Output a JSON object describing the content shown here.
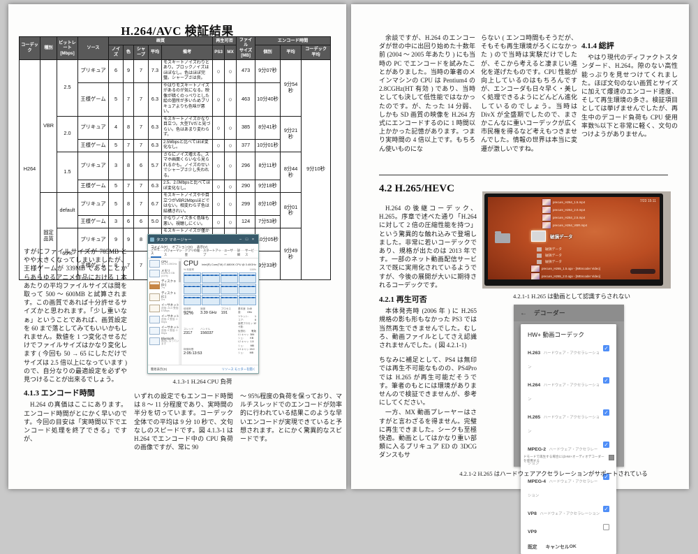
{
  "left_page": {
    "title": "H.264/AVC 検証結果",
    "table": {
      "header_rows": [
        [
          {
            "t": "コーデック",
            "rs": 2
          },
          {
            "t": "種別",
            "rs": 2
          },
          {
            "t": "ビットレート\n[Mbps]",
            "rs": 2
          },
          {
            "t": "ソース",
            "rs": 2
          },
          {
            "t": "画質",
            "cs": 5
          },
          {
            "t": "再生可否",
            "cs": 2
          },
          {
            "t": "ファイル\nサイズ\n[MB]",
            "rs": 2
          },
          {
            "t": "エンコード時間",
            "cs": 3
          }
        ],
        [
          {
            "t": "ノイズ"
          },
          {
            "t": "色"
          },
          {
            "t": "シャープ"
          },
          {
            "t": "平均"
          },
          {
            "t": "備考"
          },
          {
            "t": "PS3"
          },
          {
            "t": "MX"
          },
          {
            "t": "個別"
          },
          {
            "t": "平均"
          },
          {
            "t": "コーデック\n平均"
          }
        ]
      ],
      "rows": [
        [
          {
            "t": "H264",
            "rs": 10
          },
          {
            "t": "VBR",
            "rs": 6
          },
          {
            "t": "2.5",
            "rs": 2
          },
          {
            "t": "プリキュア"
          },
          {
            "t": "6"
          },
          {
            "t": "9"
          },
          {
            "t": "7"
          },
          {
            "t": "7.3"
          },
          {
            "t": "モスキートノイズわりとあり。ブロックノイズはほぼなし。色はほぼ完璧。シャープさは良。",
            "c": "rm"
          },
          {
            "t": "○",
            "c": "mark"
          },
          {
            "t": "○",
            "c": "mark"
          },
          {
            "t": "473"
          },
          {
            "t": "9分07秒"
          },
          {
            "t": "9分54秒",
            "rs": 2
          },
          {
            "t": "9分10秒",
            "rs": 10
          }
        ],
        [
          {
            "t": "王様ゲーム"
          },
          {
            "t": "5"
          },
          {
            "t": "7"
          },
          {
            "t": "7"
          },
          {
            "t": "6.3"
          },
          {
            "t": "やはりモスキートノイズがあるのが気になる。映像が暗くのっぺりとした絵の箇所が多いためプリキュアよりも色味が悪い。",
            "c": "rm"
          },
          {
            "t": "○",
            "c": "mark"
          },
          {
            "t": "○",
            "c": "mark"
          },
          {
            "t": "463"
          },
          {
            "t": "10分40秒"
          }
        ],
        [
          {
            "t": "2.0",
            "rs": 2
          },
          {
            "t": "プリキュア"
          },
          {
            "t": "4"
          },
          {
            "t": "8"
          },
          {
            "t": "7"
          },
          {
            "t": "6.3"
          },
          {
            "t": "モスキートノイズかなり目立つ。大型TVだと見づらい。色はあまり変わらず。",
            "c": "rm"
          },
          {
            "t": "○",
            "c": "mark"
          },
          {
            "t": "○",
            "c": "mark"
          },
          {
            "t": "385"
          },
          {
            "t": "8分41秒"
          },
          {
            "t": "9分21秒",
            "rs": 2
          }
        ],
        [
          {
            "t": "王様ゲーム"
          },
          {
            "t": "5"
          },
          {
            "t": "7"
          },
          {
            "t": "7"
          },
          {
            "t": "6.3"
          },
          {
            "t": "2.5Mbpsと比べてほぼ変化なし。",
            "c": "rm"
          },
          {
            "t": "○",
            "c": "mark"
          },
          {
            "t": "○",
            "c": "mark"
          },
          {
            "t": "377"
          },
          {
            "t": "10分01秒"
          }
        ],
        [
          {
            "t": "1.5",
            "rs": 2
          },
          {
            "t": "プリキュア"
          },
          {
            "t": "3"
          },
          {
            "t": "8"
          },
          {
            "t": "6"
          },
          {
            "t": "5.7"
          },
          {
            "t": "さらにノイズ増える。スマホ画面くらいなら見られるかも。ノイズのせいでシャープさ少し失われる。",
            "c": "rm"
          },
          {
            "t": "○",
            "c": "mark"
          },
          {
            "t": "○",
            "c": "mark"
          },
          {
            "t": "296"
          },
          {
            "t": "8分11秒"
          },
          {
            "t": "8分44秒",
            "rs": 2
          }
        ],
        [
          {
            "t": "王様ゲーム"
          },
          {
            "t": "5"
          },
          {
            "t": "7"
          },
          {
            "t": "7"
          },
          {
            "t": "6.3"
          },
          {
            "t": "2.5、2.0Mbpsと比べてほぼ変化なし。",
            "c": "rm"
          },
          {
            "t": "○",
            "c": "mark"
          },
          {
            "t": "○",
            "c": "mark"
          },
          {
            "t": "290"
          },
          {
            "t": "9分18秒"
          }
        ],
        [
          {
            "t": "固定\n品質",
            "rs": 4
          },
          {
            "t": "default",
            "rs": 2
          },
          {
            "t": "プリキュア"
          },
          {
            "t": "5"
          },
          {
            "t": "8"
          },
          {
            "t": "7"
          },
          {
            "t": "6.7"
          },
          {
            "t": "モスキートノイズやや目立つがVBR2Mbpsほどではない。相変わらず色は結構きれい。",
            "c": "rm"
          },
          {
            "t": "○",
            "c": "mark"
          },
          {
            "t": "○",
            "c": "mark"
          },
          {
            "t": "299"
          },
          {
            "t": "8分10秒"
          },
          {
            "t": "8分01秒",
            "rs": 2
          }
        ],
        [
          {
            "t": "王様ゲーム"
          },
          {
            "t": "3"
          },
          {
            "t": "6"
          },
          {
            "t": "6"
          },
          {
            "t": "5.0"
          },
          {
            "t": "かなりノイズ多く色味も悪い。視聴しにくい。",
            "c": "rm"
          },
          {
            "t": "○",
            "c": "mark"
          },
          {
            "t": "○",
            "c": "mark"
          },
          {
            "t": "124"
          },
          {
            "t": "7分53秒"
          }
        ],
        [
          {
            "t": "65%",
            "rs": 2
          },
          {
            "t": "プリキュア"
          },
          {
            "t": "9"
          },
          {
            "t": "9"
          },
          {
            "t": "8"
          },
          {
            "t": "8.7"
          },
          {
            "t": "モスキートノイズが僅かにあるのみで、ほとんどオリジナルのTSに近い画質といってよい。",
            "c": "rm"
          },
          {
            "t": "○",
            "c": "mark"
          },
          {
            "t": "○",
            "c": "mark"
          },
          {
            "t": "785"
          },
          {
            "t": "10分05秒"
          },
          {
            "t": "9分49秒",
            "rs": 2
          }
        ],
        [
          {
            "t": "王様ゲーム"
          },
          {
            "t": "8"
          },
          {
            "t": "7"
          },
          {
            "t": "7"
          },
          {
            "t": "7.3"
          },
          {
            "t": "暗い画面でのノイズも少なく、安定している。動きの激しい場面でのブロックノイズもほとんどなし。",
            "c": "rm"
          },
          {
            "t": "○",
            "c": "mark"
          },
          {
            "t": "○",
            "c": "mark"
          },
          {
            "t": "339"
          },
          {
            "t": "9分33秒"
          }
        ]
      ]
    },
    "col1_paragraph": "すがにファイルサイズが 785MB とやや大きくなってしまいましたが、王様ゲームが 339MB であることからあらゆるアニメ作品における 1 本あたりの平均ファイルサイズは間を取って 500 〜 600MB と試算されます。この画質であれば十分許せるサイズかと思われます。「少し重いなぁ」ということであれば、画質設定を 60 まで落としてみてもいいかもしれません。数値を 1 つ変化させるだけでファイルサイズはかなり変化します ( 今回も 50 → 65 にしただけでサイズは 2.5 倍以上になっています ) ので、自分なりの最適設定を必ずや見つけることが出来るでしょう。",
    "sec_413_title": "4.1.3 エンコード時間",
    "col1_paragraph2": "H.264 の真価はここにあります。エンコード時間がとにかく早いのです。今回の目安は「実時間以下でエンコード処理を終了できる」ですが、",
    "taskmgr": {
      "window_title": "タスク マネージャー",
      "window_controls": [
        "–",
        "□",
        "×"
      ],
      "menu": [
        "ファイル(F)",
        "オプション(O)",
        "表示(V)"
      ],
      "tabs": [
        "プロセス",
        "パフォーマンス",
        "アプリの履歴",
        "スタートアップ",
        "ユーザー",
        "詳細",
        "サービス"
      ],
      "sidebar": [
        {
          "name": "CPU",
          "sub": "92% 3.39GHz"
        },
        {
          "name": "メモリ",
          "sub": "6.6/15.9 GB (41%)"
        },
        {
          "name": "ディスク 0 (D:)",
          "sub": "7%"
        },
        {
          "name": "ディスク 1 (C:)",
          "sub": "0%"
        },
        {
          "name": "イーサネット",
          "sub": "送信: 24.0 受信: 6 Mbps"
        },
        {
          "name": "イーサネット",
          "sub": "送信: 0 受信: 0 Kbps"
        },
        {
          "name": "イーサネット",
          "sub": "送信: 0 受信: 0 Kbps"
        },
        {
          "name": "Bluetooth",
          "sub": "無効になっています"
        }
      ],
      "cpu_title": "CPU",
      "cpu_subtitle": "Intel(R) Core(TM) i7-6800K CPU @ 3.40GHz",
      "util_label": "% 利用率",
      "util_max": "100%",
      "stats": [
        {
          "label": "使用率",
          "value": "92%"
        },
        {
          "label": "速度",
          "value": "3.39 GHz"
        },
        {
          "label": "プロセス",
          "value": "191"
        },
        {
          "label": "スレッド",
          "value": "2317"
        },
        {
          "label": "ハンドル",
          "value": "156037"
        },
        {
          "label": "稼働時間",
          "value": "2:05:13:53"
        }
      ],
      "info": [
        {
          "label": "基本速度:",
          "value": "3.40 GHz"
        },
        {
          "label": "ソケット:",
          "value": "1"
        },
        {
          "label": "コア:",
          "value": "6"
        },
        {
          "label": "論理プロセッサ数:",
          "value": "12"
        },
        {
          "label": "仮想化:",
          "value": "有効"
        },
        {
          "label": "L1 キャッシュ:",
          "value": "384 KB"
        },
        {
          "label": "L2 キャッシュ:",
          "value": "1.5 MB"
        },
        {
          "label": "L3 キャッシュ:",
          "value": "15.0 MB"
        }
      ],
      "footer_left": "簡易表示(D)",
      "footer_right": "リソース モニターを開く"
    },
    "fig_caption": "4.1.3-1 H.264 CPU 負荷",
    "col2_paragraph": "いずれの設定でもエンコード時間は 8 〜 11 分程度であり、実時間の半分を切っています。コーデック全体での平均は 9 分 10 秒で、文句なしのスピードです。図 4.1.3-1 は H.264 でエンコード中の CPU 負荷の画像ですが、常に 90",
    "col3_paragraph": "〜 95%程度の負荷を保っており、マルチスレッドでのエンコードが効率的に行われている結果このような早いエンコードが実現できていると予想されます。とにかく驚異的なスピードです。"
  },
  "right_page": {
    "col1_paragraph": "余談ですが、H.264 のエンコーダが世の中に出回り始めた十数年前 (2004 〜 2005 年あたり ) にも当時の PC でエンコードを試みたことがありました。当時の筆者のメインマシンの CPU は Pentium4 の 2.8CGHz(HT 有効 ) であり、当時としても決して低性能ではなかったのです。が、たった 14 分弱、しかも SD 画質の映像を H.264 方式にエンコードするのに 1 時間以上かかった記憶があります。つまり実時間の 4 倍以上です。もちろん使いものにな",
    "col2_paragraph": "らない ( エンコ時間もそうだが、そもそも再生環境がろくになかった ) ので当時は実験だけでしたが、そこから考えると凄まじい進化を遂げたものです。CPU 性能が向上しているのはもちろんですが、エンコーダも日々早く・美しく処理できるようにどんどん進化しているのでしょう。当時は DivX が全盛期でしたので、まさかこんなに重いコーデックが広く市民権を得るなど考えもつきませんでした。情報の世界は本当に変遷が激しいですね。",
    "sec_414_title": "4.1.4 総評",
    "col3_paragraph": "やはり現代のディファクトスタンダード、H.264。隙のない高性能っぷりを見せつけてくれました。ほぼ文句のない画質とサイズに加えて爆速のエンコード速度、そして再生環境の多さ。検証項目としては挙げませんでしたが、再生中のデコード負荷も CPU 使用率数%以下と非常に軽く、文句のつけようがありません。",
    "sec_42_title": "4.2 H.265/HEVC",
    "p_hevc_intro": "H.264 の後継コーデック、H.265。序章で述べた通り「H.264 に対して 2 倍の圧縮性能を持つ」という驚異的な触れ込みで登場しました。非常に若いコーデックであり、規格が出たのは 2013 年です。一部のネット動画配信サービスで既に実用化されているようですが、今後の展開が大いに期待されるコーデックです。",
    "sec_421_title": "4.2.1 再生可否",
    "p_421_1": "本体発売時 (2006 年 ) に H.265 規格の影も形もなかった PS3 では当然再生できませんでした。むしろ、動画ファイルとしてさえ認識されませんでした。( 図 4.2.1-1)",
    "p_421_2": "ちなみに補足として、PS4 は無印では再生不可能なものの、PS4Pro では H.265 が再生可能だそうです。筆者のもとには環境がありませんので検証できませんが、参考にしてください。",
    "p_421_3": "一方、MX 動画プレーヤーはさすがと言わざるを得ません。完璧に再生できました。シークも至極快適。動画としてはかなり重い部類に入るプリキュア ED の 3DCG ダンスもサ",
    "ps3": {
      "clock": "7/23 15:11",
      "files_top": [
        "precure_H264_1.5.mp4",
        "precure_H264_2.0.mp4",
        "precure_H264_2.5.mp4",
        "precure_H264_VBR.mp4"
      ],
      "selected_item": "破損データ",
      "broken_items": [
        "破損データ",
        "破損データ",
        "破損データ"
      ],
      "files_bottom": [
        "precure_H265_1.5.ogv - [WEncoder Video]",
        "precure_H265_2.0.ogv - [WEncoder Video]"
      ]
    },
    "fig1_caption": "4.2.1-1 H.265 は動画として認識すらされない",
    "mx": {
      "back_icon": "←",
      "header_title": "デコーダー",
      "dialog_title": "HW+ 動画コーデック",
      "check_glyph": "✓",
      "items": [
        {
          "name": "H.263",
          "desc": "ハードウェア・アクセラレーション",
          "checked": true
        },
        {
          "name": "H.264",
          "desc": "ハードウェア・アクセラレーション",
          "checked": true
        },
        {
          "name": "H.265",
          "desc": "ハードウェア・アクセラレーション",
          "checked": true
        },
        {
          "name": "MPEG-2",
          "desc": "ハードウェア・アクセラレーション",
          "checked": true
        },
        {
          "name": "MPEG-4",
          "desc": "ハードウェア・アクセラレーション",
          "checked": true
        },
        {
          "name": "VP8",
          "desc": "ハードウェア・アクセラレーション",
          "checked": true
        },
        {
          "name": "VP9",
          "desc": "",
          "checked": false
        }
      ],
      "buttons": [
        "既定",
        "キャンセル",
        "OK"
      ],
      "dimmed_text": "ドモードで再生する場合にはHW+オーディオデコーダーを使用する"
    },
    "fig2_caption": "4.2.1-2 H.265 はハードウェアアクセラレーションがサポートされている"
  }
}
